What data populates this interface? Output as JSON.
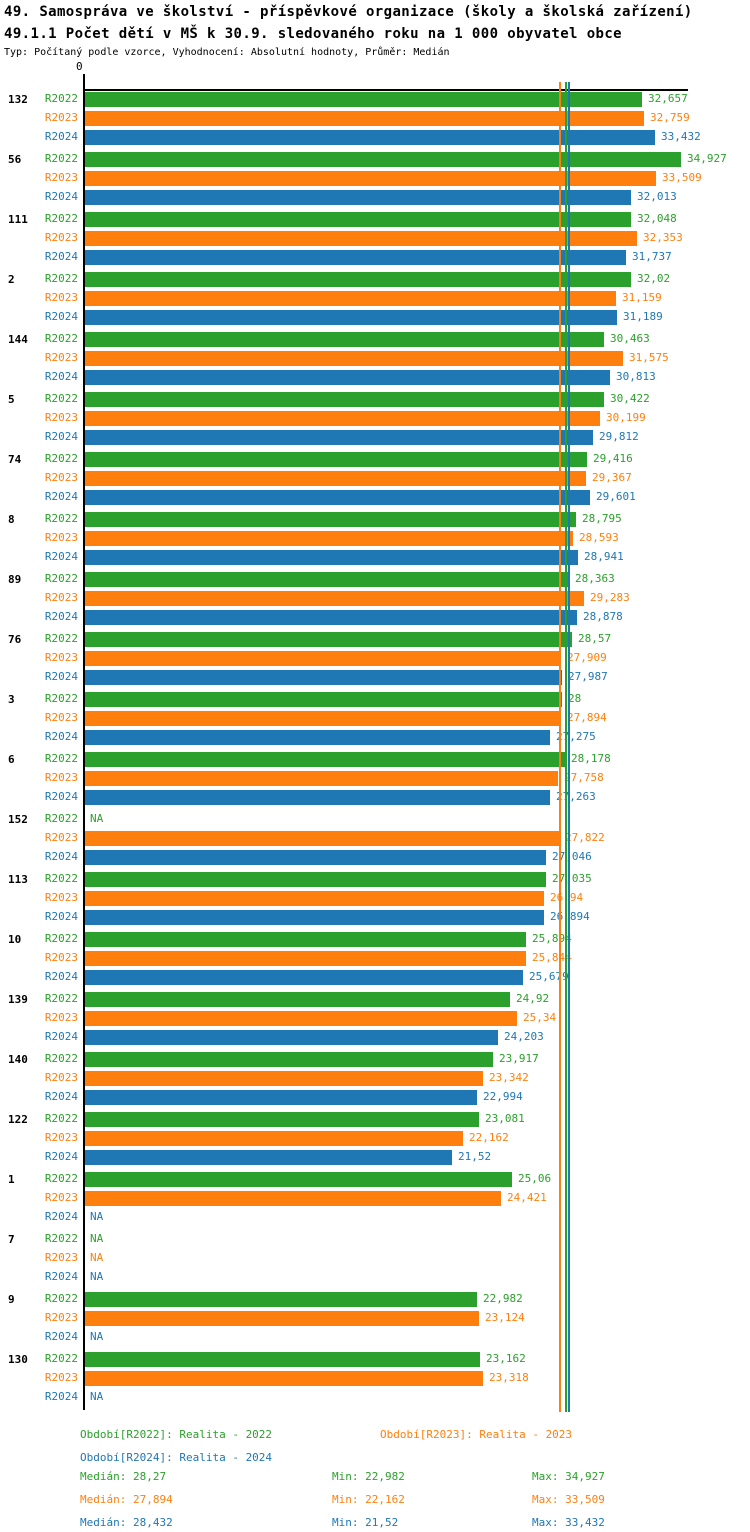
{
  "header": {
    "title": "49. Samospráva ve školství - příspěvkové organizace (školy a školská zařízení)",
    "subtitle": "49.1.1 Počet dětí v MŠ k 30.9. sledovaného roku na 1 000 obyvatel obce",
    "meta": "Typ: Počítaný podle vzorce, Vyhodnocení: Absolutní hodnoty, Průměr: Medián"
  },
  "chart_data": {
    "type": "bar",
    "orientation": "horizontal",
    "axis": {
      "zero_label": "0",
      "xlim": [
        0,
        35.5
      ],
      "grid": false
    },
    "na_text": "NA",
    "series": [
      {
        "label": "R2022",
        "name": "Realita - 2022",
        "color": "#2ca02c",
        "median": "28,27",
        "min": "22,982",
        "max": "34,927"
      },
      {
        "label": "R2023",
        "name": "Realita - 2023",
        "color": "#ff7f0e",
        "median": "27,894",
        "min": "22,162",
        "max": "33,509"
      },
      {
        "label": "R2024",
        "name": "Realita - 2024",
        "color": "#1f77b4",
        "median": "28,432",
        "min": "21,52",
        "max": "33,432"
      }
    ],
    "groups": [
      {
        "category": "132",
        "values": [
          "32,657",
          "32,759",
          "33,432"
        ]
      },
      {
        "category": "56",
        "values": [
          "34,927",
          "33,509",
          "32,013"
        ]
      },
      {
        "category": "111",
        "values": [
          "32,048",
          "32,353",
          "31,737"
        ]
      },
      {
        "category": "2",
        "values": [
          "32,02",
          "31,159",
          "31,189"
        ]
      },
      {
        "category": "144",
        "values": [
          "30,463",
          "31,575",
          "30,813"
        ]
      },
      {
        "category": "5",
        "values": [
          "30,422",
          "30,199",
          "29,812"
        ]
      },
      {
        "category": "74",
        "values": [
          "29,416",
          "29,367",
          "29,601"
        ]
      },
      {
        "category": "8",
        "values": [
          "28,795",
          "28,593",
          "28,941"
        ]
      },
      {
        "category": "89",
        "values": [
          "28,363",
          "29,283",
          "28,878"
        ]
      },
      {
        "category": "76",
        "values": [
          "28,57",
          "27,909",
          "27,987"
        ]
      },
      {
        "category": "3",
        "values": [
          "28",
          "27,894",
          "27,275"
        ]
      },
      {
        "category": "6",
        "values": [
          "28,178",
          "27,758",
          "27,263"
        ]
      },
      {
        "category": "152",
        "values": [
          "NA",
          "27,822",
          "27,046"
        ]
      },
      {
        "category": "113",
        "values": [
          "27,035",
          "26,94",
          "26,894"
        ]
      },
      {
        "category": "10",
        "values": [
          "25,894",
          "25,844",
          "25,679"
        ]
      },
      {
        "category": "139",
        "values": [
          "24,92",
          "25,34",
          "24,203"
        ]
      },
      {
        "category": "140",
        "values": [
          "23,917",
          "23,342",
          "22,994"
        ]
      },
      {
        "category": "122",
        "values": [
          "23,081",
          "22,162",
          "21,52"
        ]
      },
      {
        "category": "1",
        "values": [
          "25,06",
          "24,421",
          "NA"
        ]
      },
      {
        "category": "7",
        "values": [
          "NA",
          "NA",
          "NA"
        ]
      },
      {
        "category": "9",
        "values": [
          "22,982",
          "23,124",
          "NA"
        ]
      },
      {
        "category": "130",
        "values": [
          "23,162",
          "23,318",
          "NA"
        ]
      }
    ]
  },
  "legend": {
    "period_label": "Období",
    "median_label": "Medián",
    "min_label": "Min",
    "max_label": "Max"
  }
}
